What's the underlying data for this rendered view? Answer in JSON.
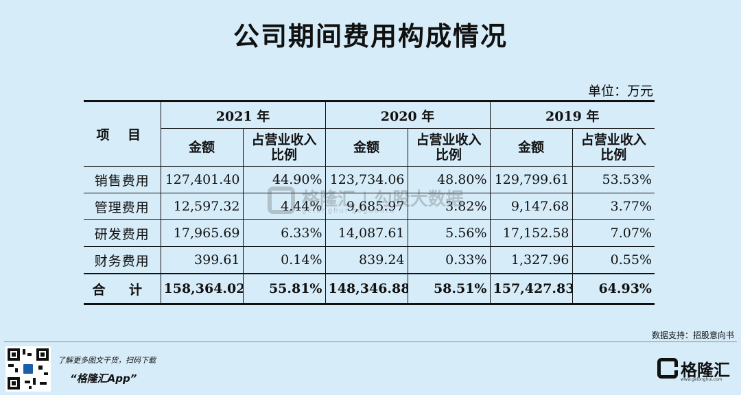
{
  "title": "公司期间费用构成情况",
  "unit": "单位：万元",
  "table": {
    "item_header": "项 目",
    "years": [
      "2021 年",
      "2020 年",
      "2019 年"
    ],
    "sub_amount": "金额",
    "sub_ratio": "占营业收入比例",
    "rows": [
      {
        "label": "销售费用",
        "cells": [
          "127,401.40",
          "44.90%",
          "123,734.06",
          "48.80%",
          "129,799.61",
          "53.53%"
        ]
      },
      {
        "label": "管理费用",
        "cells": [
          "12,597.32",
          "4.44%",
          "9,685.97",
          "3.82%",
          "9,147.68",
          "3.77%"
        ]
      },
      {
        "label": "研发费用",
        "cells": [
          "17,965.69",
          "6.33%",
          "14,087.61",
          "5.56%",
          "17,152.58",
          "7.07%"
        ]
      },
      {
        "label": "财务费用",
        "cells": [
          "399.61",
          "0.14%",
          "839.24",
          "0.33%",
          "1,327.96",
          "0.55%"
        ]
      }
    ],
    "total": {
      "label": "合 计",
      "cells": [
        "158,364.02",
        "55.81%",
        "148,346.88",
        "58.51%",
        "157,427.83",
        "64.93%"
      ]
    }
  },
  "watermark": {
    "text": "格隆汇 | 勾股大数据",
    "sub": "gelonghui  gogudata"
  },
  "source": "数据支持：招股意向书",
  "footer": {
    "promo_line1": "了解更多图文干货，扫码下载",
    "promo_line2": "“格隆汇App”",
    "brand_name": "格隆汇",
    "brand_url": "www.gelonghui.com",
    "qr_icon": "qr-code-icon",
    "logo_icon": "gelonghui-logo-icon"
  },
  "colors": {
    "background": "#d6ecf8",
    "text": "#111111",
    "qr_center": "#1a5fa8"
  }
}
